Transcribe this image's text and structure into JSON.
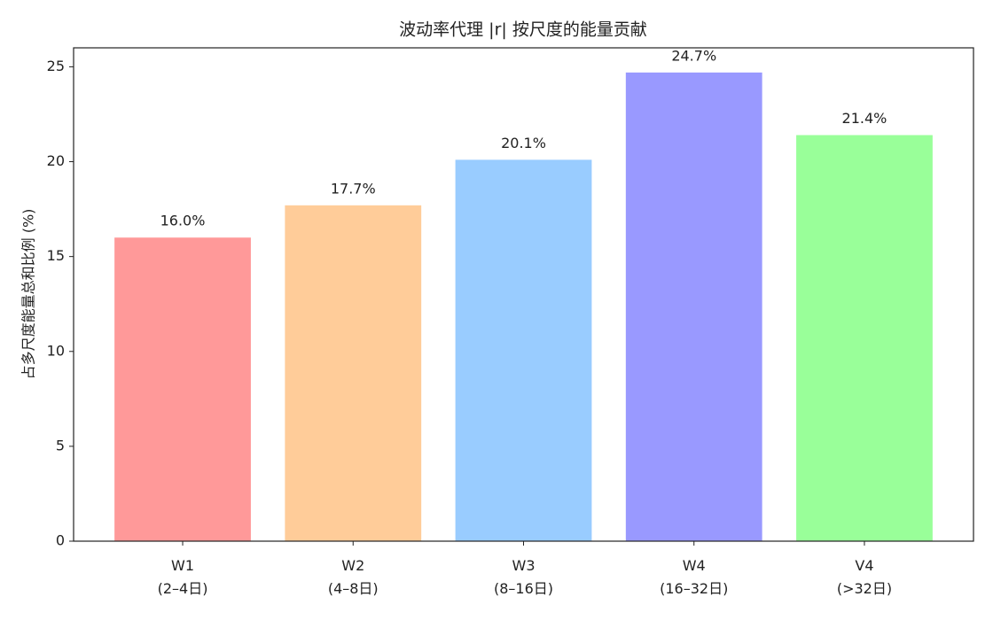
{
  "chart_data": {
    "type": "bar",
    "title": "波动率代理 |r| 按尺度的能量贡献",
    "y_label": "占多尺度能量总和比例 (%)",
    "categories": [
      "W1\n(2–4日)",
      "W2\n(4–8日)",
      "W3\n(8–16日)",
      "W4\n(16–32日)",
      "V4\n(>32日)"
    ],
    "values": [
      16.0,
      17.7,
      20.1,
      24.7,
      21.4
    ],
    "value_labels": [
      "16.0%",
      "17.7%",
      "20.1%",
      "24.7%",
      "21.4%"
    ],
    "colors": [
      "#ff9999",
      "#ffcc99",
      "#99ccff",
      "#9999ff",
      "#99ff99"
    ],
    "ylim": [
      0,
      26
    ],
    "yticks": [
      0,
      5,
      10,
      15,
      20,
      25
    ],
    "grid": false
  }
}
